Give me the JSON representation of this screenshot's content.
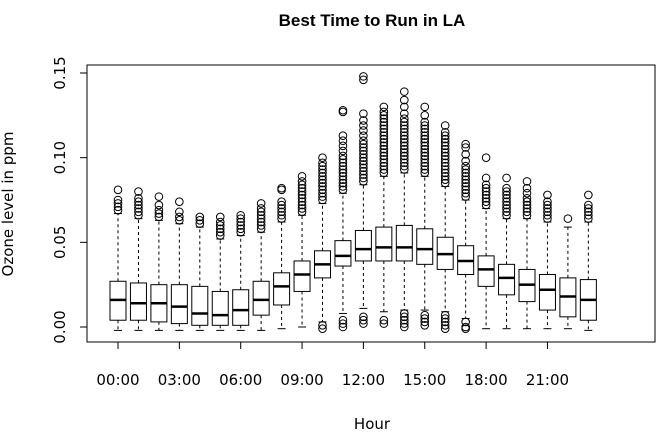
{
  "chart_data": {
    "type": "boxplot",
    "title": "Best Time to Run in LA",
    "xlabel": "Hour",
    "ylabel": "Ozone level in ppm",
    "ylim": [
      -0.01,
      0.155
    ],
    "y_ticks": [
      0.0,
      0.05,
      0.1,
      0.15
    ],
    "y_tick_labels": [
      "0.00",
      "0.05",
      "0.10",
      "0.15"
    ],
    "x_tick_labels": [
      {
        "index": 0,
        "label": "00:00"
      },
      {
        "index": 3,
        "label": "03:00"
      },
      {
        "index": 6,
        "label": "06:00"
      },
      {
        "index": 9,
        "label": "09:00"
      },
      {
        "index": 12,
        "label": "12:00"
      },
      {
        "index": 15,
        "label": "15:00"
      },
      {
        "index": 18,
        "label": "18:00"
      },
      {
        "index": 21,
        "label": "21:00"
      }
    ],
    "grid": false,
    "categories": [
      "00:00",
      "01:00",
      "02:00",
      "03:00",
      "04:00",
      "05:00",
      "06:00",
      "07:00",
      "08:00",
      "09:00",
      "10:00",
      "11:00",
      "12:00",
      "13:00",
      "14:00",
      "15:00",
      "16:00",
      "17:00",
      "18:00",
      "19:00",
      "20:00",
      "21:00",
      "22:00",
      "23:00"
    ],
    "boxes": [
      {
        "q1": 0.004,
        "median": 0.016,
        "q3": 0.027,
        "whisker_low": -0.002,
        "whisker_high": 0.067,
        "outliers_high": [
          0.069,
          0.071,
          0.073,
          0.075,
          0.081
        ],
        "outliers_low": []
      },
      {
        "q1": 0.004,
        "median": 0.014,
        "q3": 0.026,
        "whisker_low": -0.002,
        "whisker_high": 0.064,
        "outliers_high": [
          0.066,
          0.068,
          0.07,
          0.072,
          0.074,
          0.076,
          0.08
        ],
        "outliers_low": []
      },
      {
        "q1": 0.003,
        "median": 0.014,
        "q3": 0.025,
        "whisker_low": -0.002,
        "whisker_high": 0.063,
        "outliers_high": [
          0.065,
          0.067,
          0.069,
          0.072,
          0.077
        ],
        "outliers_low": []
      },
      {
        "q1": 0.002,
        "median": 0.012,
        "q3": 0.025,
        "whisker_low": -0.002,
        "whisker_high": 0.061,
        "outliers_high": [
          0.063,
          0.065,
          0.068,
          0.074
        ],
        "outliers_low": []
      },
      {
        "q1": 0.001,
        "median": 0.008,
        "q3": 0.024,
        "whisker_low": -0.002,
        "whisker_high": 0.059,
        "outliers_high": [
          0.061,
          0.063,
          0.065
        ],
        "outliers_low": []
      },
      {
        "q1": 0.001,
        "median": 0.007,
        "q3": 0.021,
        "whisker_low": -0.002,
        "whisker_high": 0.052,
        "outliers_high": [
          0.054,
          0.056,
          0.058,
          0.06,
          0.062,
          0.065
        ],
        "outliers_low": []
      },
      {
        "q1": 0.001,
        "median": 0.01,
        "q3": 0.022,
        "whisker_low": -0.002,
        "whisker_high": 0.054,
        "outliers_high": [
          0.056,
          0.058,
          0.06,
          0.062,
          0.064,
          0.066
        ],
        "outliers_low": []
      },
      {
        "q1": 0.007,
        "median": 0.016,
        "q3": 0.027,
        "whisker_low": -0.002,
        "whisker_high": 0.056,
        "outliers_high": [
          0.058,
          0.06,
          0.062,
          0.064,
          0.066,
          0.068,
          0.07,
          0.073
        ],
        "outliers_low": []
      },
      {
        "q1": 0.013,
        "median": 0.024,
        "q3": 0.032,
        "whisker_low": -0.001,
        "whisker_high": 0.062,
        "outliers_high": [
          0.064,
          0.066,
          0.068,
          0.07,
          0.072,
          0.074,
          0.081,
          0.082
        ],
        "outliers_low": []
      },
      {
        "q1": 0.021,
        "median": 0.031,
        "q3": 0.039,
        "whisker_low": 0.0,
        "whisker_high": 0.066,
        "outliers_high": [
          0.068,
          0.07,
          0.072,
          0.074,
          0.076,
          0.078,
          0.08,
          0.082,
          0.084,
          0.086,
          0.089
        ],
        "outliers_low": []
      },
      {
        "q1": 0.029,
        "median": 0.037,
        "q3": 0.045,
        "whisker_low": 0.003,
        "whisker_high": 0.073,
        "outliers_high": [
          0.075,
          0.077,
          0.079,
          0.081,
          0.083,
          0.085,
          0.087,
          0.089,
          0.091,
          0.093,
          0.095,
          0.097,
          0.1
        ],
        "outliers_low": [
          0.001,
          -0.001
        ]
      },
      {
        "q1": 0.036,
        "median": 0.042,
        "q3": 0.051,
        "whisker_low": 0.008,
        "whisker_high": 0.079,
        "outliers_high": [
          0.081,
          0.083,
          0.085,
          0.087,
          0.089,
          0.091,
          0.093,
          0.095,
          0.097,
          0.099,
          0.101,
          0.104,
          0.107,
          0.11,
          0.113,
          0.127,
          0.128
        ],
        "outliers_low": [
          0.004,
          0.002,
          0.0
        ]
      },
      {
        "q1": 0.039,
        "median": 0.046,
        "q3": 0.057,
        "whisker_low": 0.011,
        "whisker_high": 0.084,
        "outliers_high": [
          0.086,
          0.088,
          0.09,
          0.092,
          0.094,
          0.096,
          0.098,
          0.1,
          0.102,
          0.104,
          0.106,
          0.108,
          0.11,
          0.113,
          0.116,
          0.119,
          0.122,
          0.126,
          0.146,
          0.148
        ],
        "outliers_low": [
          0.006,
          0.004,
          0.002
        ]
      },
      {
        "q1": 0.039,
        "median": 0.047,
        "q3": 0.059,
        "whisker_low": 0.009,
        "whisker_high": 0.089,
        "outliers_high": [
          0.091,
          0.093,
          0.095,
          0.097,
          0.099,
          0.101,
          0.103,
          0.105,
          0.107,
          0.109,
          0.111,
          0.113,
          0.115,
          0.117,
          0.119,
          0.121,
          0.123,
          0.125,
          0.127,
          0.13
        ],
        "outliers_low": [
          0.004,
          0.002
        ]
      },
      {
        "q1": 0.039,
        "median": 0.047,
        "q3": 0.06,
        "whisker_low": 0.01,
        "whisker_high": 0.091,
        "outliers_high": [
          0.093,
          0.095,
          0.097,
          0.099,
          0.101,
          0.103,
          0.105,
          0.107,
          0.109,
          0.111,
          0.113,
          0.115,
          0.117,
          0.119,
          0.121,
          0.123,
          0.126,
          0.13,
          0.134,
          0.139
        ],
        "outliers_low": [
          0.008,
          0.006,
          0.004,
          0.002,
          0.0
        ]
      },
      {
        "q1": 0.037,
        "median": 0.046,
        "q3": 0.058,
        "whisker_low": 0.01,
        "whisker_high": 0.089,
        "outliers_high": [
          0.091,
          0.093,
          0.095,
          0.097,
          0.099,
          0.101,
          0.103,
          0.105,
          0.107,
          0.109,
          0.111,
          0.113,
          0.115,
          0.117,
          0.119,
          0.121,
          0.125,
          0.13
        ],
        "outliers_low": [
          0.007,
          0.005,
          0.003,
          0.001
        ]
      },
      {
        "q1": 0.034,
        "median": 0.043,
        "q3": 0.053,
        "whisker_low": 0.009,
        "whisker_high": 0.083,
        "outliers_high": [
          0.085,
          0.087,
          0.089,
          0.091,
          0.093,
          0.095,
          0.097,
          0.099,
          0.101,
          0.103,
          0.105,
          0.107,
          0.109,
          0.111,
          0.113,
          0.115,
          0.119
        ],
        "outliers_low": [
          0.007,
          0.005,
          0.003,
          0.001,
          -0.001
        ]
      },
      {
        "q1": 0.031,
        "median": 0.039,
        "q3": 0.048,
        "whisker_low": 0.005,
        "whisker_high": 0.075,
        "outliers_high": [
          0.077,
          0.079,
          0.081,
          0.083,
          0.085,
          0.087,
          0.089,
          0.091,
          0.093,
          0.095,
          0.098,
          0.102,
          0.106,
          0.108
        ],
        "outliers_low": [
          0.003,
          0.0,
          -0.001
        ]
      },
      {
        "q1": 0.024,
        "median": 0.034,
        "q3": 0.042,
        "whisker_low": -0.001,
        "whisker_high": 0.07,
        "outliers_high": [
          0.072,
          0.074,
          0.076,
          0.078,
          0.08,
          0.082,
          0.084,
          0.088,
          0.1
        ],
        "outliers_low": []
      },
      {
        "q1": 0.019,
        "median": 0.029,
        "q3": 0.037,
        "whisker_low": -0.001,
        "whisker_high": 0.064,
        "outliers_high": [
          0.066,
          0.068,
          0.07,
          0.072,
          0.074,
          0.076,
          0.078,
          0.08,
          0.082,
          0.088
        ],
        "outliers_low": []
      },
      {
        "q1": 0.015,
        "median": 0.025,
        "q3": 0.034,
        "whisker_low": -0.001,
        "whisker_high": 0.064,
        "outliers_high": [
          0.066,
          0.068,
          0.07,
          0.072,
          0.074,
          0.076,
          0.079,
          0.082,
          0.086
        ],
        "outliers_low": []
      },
      {
        "q1": 0.01,
        "median": 0.022,
        "q3": 0.031,
        "whisker_low": -0.001,
        "whisker_high": 0.062,
        "outliers_high": [
          0.064,
          0.066,
          0.068,
          0.07,
          0.072,
          0.074,
          0.078
        ],
        "outliers_low": []
      },
      {
        "q1": 0.006,
        "median": 0.018,
        "q3": 0.029,
        "whisker_low": -0.001,
        "whisker_high": 0.059,
        "outliers_high": [
          0.064
        ],
        "outliers_low": []
      },
      {
        "q1": 0.004,
        "median": 0.016,
        "q3": 0.028,
        "whisker_low": -0.002,
        "whisker_high": 0.062,
        "outliers_high": [
          0.064,
          0.066,
          0.068,
          0.07,
          0.072,
          0.078
        ],
        "outliers_low": []
      }
    ]
  }
}
